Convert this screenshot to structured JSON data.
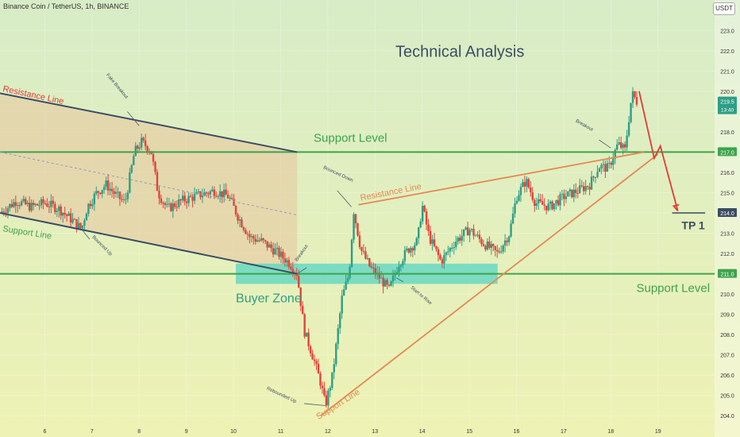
{
  "header": {
    "symbol_line": "Binance Coin / TetherUS, 1h, BINANCE",
    "currency_button": "USDT"
  },
  "colors": {
    "bg_top": "#d7ecc7",
    "bg_bottom": "#eef2b4",
    "up_candle": "#2e9e86",
    "down_candle": "#e0443c",
    "channel_fill": "#e8c49e",
    "buyer_zone": "#57d6c3",
    "support_green": "#3fa34d",
    "channel_line": "#3b4d62",
    "orange_line": "#e48a52",
    "forecast_red": "#e53935",
    "title_color": "#3b4d62"
  },
  "chart_data": {
    "type": "candlestick",
    "title": "Technical Analysis",
    "ylim": [
      203.5,
      224.5
    ],
    "xlim": [
      5.05,
      20.2
    ],
    "y_ticks": [
      204.0,
      205.0,
      206.0,
      207.0,
      208.0,
      209.0,
      210.0,
      211.0,
      212.0,
      213.0,
      214.0,
      215.0,
      216.0,
      217.0,
      218.0,
      219.0,
      220.0,
      221.0,
      222.0,
      223.0
    ],
    "x_ticks": [
      "6",
      "7",
      "8",
      "9",
      "10",
      "11",
      "12",
      "13",
      "14",
      "15",
      "16",
      "17",
      "18",
      "19"
    ],
    "price_labels": [
      {
        "value": 217.0,
        "text": "217.0",
        "color": "#3fa34d"
      },
      {
        "value": 214.0,
        "text": "214.0",
        "color": "#3b4d62"
      },
      {
        "value": 211.0,
        "text": "211.0",
        "color": "#3fa34d"
      },
      {
        "value": 219.5,
        "text": "219.5",
        "color": "#2e9e86",
        "sub": "13:40"
      }
    ],
    "price_path": [
      {
        "x": 5.05,
        "y": 214.0
      },
      {
        "x": 5.4,
        "y": 214.6
      },
      {
        "x": 5.7,
        "y": 214.3
      },
      {
        "x": 6.0,
        "y": 214.5
      },
      {
        "x": 6.3,
        "y": 214.2
      },
      {
        "x": 6.6,
        "y": 213.6
      },
      {
        "x": 6.78,
        "y": 213.2
      },
      {
        "x": 6.9,
        "y": 214.3
      },
      {
        "x": 7.1,
        "y": 215.0
      },
      {
        "x": 7.3,
        "y": 215.4
      },
      {
        "x": 7.5,
        "y": 214.9
      },
      {
        "x": 7.7,
        "y": 214.5
      },
      {
        "x": 7.9,
        "y": 217.0
      },
      {
        "x": 8.05,
        "y": 217.5
      },
      {
        "x": 8.25,
        "y": 217.1
      },
      {
        "x": 8.4,
        "y": 215.0
      },
      {
        "x": 8.6,
        "y": 214.2
      },
      {
        "x": 8.9,
        "y": 214.6
      },
      {
        "x": 9.3,
        "y": 214.9
      },
      {
        "x": 9.6,
        "y": 215.1
      },
      {
        "x": 9.9,
        "y": 214.8
      },
      {
        "x": 10.1,
        "y": 213.8
      },
      {
        "x": 10.35,
        "y": 212.8
      },
      {
        "x": 10.6,
        "y": 212.6
      },
      {
        "x": 10.9,
        "y": 212.1
      },
      {
        "x": 11.2,
        "y": 211.5
      },
      {
        "x": 11.35,
        "y": 211.0
      },
      {
        "x": 11.5,
        "y": 208.2
      },
      {
        "x": 11.7,
        "y": 206.8
      },
      {
        "x": 11.85,
        "y": 205.6
      },
      {
        "x": 11.95,
        "y": 204.5
      },
      {
        "x": 12.1,
        "y": 206.0
      },
      {
        "x": 12.3,
        "y": 209.8
      },
      {
        "x": 12.45,
        "y": 211.0
      },
      {
        "x": 12.55,
        "y": 214.1
      },
      {
        "x": 12.7,
        "y": 212.2
      },
      {
        "x": 12.9,
        "y": 211.3
      },
      {
        "x": 13.1,
        "y": 210.8
      },
      {
        "x": 13.3,
        "y": 210.2
      },
      {
        "x": 13.5,
        "y": 211.5
      },
      {
        "x": 13.7,
        "y": 212.2
      },
      {
        "x": 13.9,
        "y": 212.6
      },
      {
        "x": 14.0,
        "y": 214.4
      },
      {
        "x": 14.15,
        "y": 212.8
      },
      {
        "x": 14.4,
        "y": 211.6
      },
      {
        "x": 14.7,
        "y": 212.6
      },
      {
        "x": 15.0,
        "y": 213.2
      },
      {
        "x": 15.3,
        "y": 212.5
      },
      {
        "x": 15.6,
        "y": 212.0
      },
      {
        "x": 15.85,
        "y": 213.0
      },
      {
        "x": 16.0,
        "y": 214.8
      },
      {
        "x": 16.2,
        "y": 215.6
      },
      {
        "x": 16.4,
        "y": 214.5
      },
      {
        "x": 16.7,
        "y": 214.3
      },
      {
        "x": 17.0,
        "y": 214.8
      },
      {
        "x": 17.3,
        "y": 215.1
      },
      {
        "x": 17.55,
        "y": 215.4
      },
      {
        "x": 17.75,
        "y": 216.3
      },
      {
        "x": 17.95,
        "y": 216.2
      },
      {
        "x": 18.15,
        "y": 217.4
      },
      {
        "x": 18.3,
        "y": 217.1
      },
      {
        "x": 18.45,
        "y": 219.9
      },
      {
        "x": 18.55,
        "y": 219.5
      }
    ],
    "channel": {
      "upper": [
        {
          "x": 5.05,
          "y": 219.9
        },
        {
          "x": 11.35,
          "y": 217.0
        }
      ],
      "mid": [
        {
          "x": 5.05,
          "y": 217.0
        },
        {
          "x": 11.35,
          "y": 213.9
        }
      ],
      "lower": [
        {
          "x": 5.05,
          "y": 214.0
        },
        {
          "x": 11.35,
          "y": 211.0
        }
      ]
    },
    "buyer_zone": {
      "x0": 10.05,
      "x1": 15.6,
      "y0": 210.5,
      "y1": 211.5
    },
    "support_level_upper": 217.0,
    "support_level_lower": 211.0,
    "tp_level": 214.0,
    "rising_support": [
      {
        "x": 11.85,
        "y": 204.0
      },
      {
        "x": 19.0,
        "y": 216.9
      }
    ],
    "rising_resistance": [
      {
        "x": 12.65,
        "y": 214.4
      },
      {
        "x": 18.7,
        "y": 217.0
      }
    ],
    "forecast": [
      {
        "x": 18.6,
        "y": 220.0
      },
      {
        "x": 18.92,
        "y": 216.7
      },
      {
        "x": 19.05,
        "y": 217.3
      },
      {
        "x": 19.42,
        "y": 214.1
      }
    ],
    "tp_line_x": [
      19.3,
      20.0
    ],
    "annotations": [
      {
        "text": "Technical Analysis",
        "x": 14.8,
        "y": 221.7,
        "color": "#3b4d62",
        "size": 20,
        "weight": "normal",
        "rotate": 0,
        "anchor": "middle"
      },
      {
        "text": "Resistance Line",
        "x": 5.1,
        "y": 220.0,
        "color": "#e53935",
        "size": 11,
        "rotate": 12,
        "anchor": "start"
      },
      {
        "text": "Support Line",
        "x": 5.1,
        "y": 213.1,
        "color": "#3fa34d",
        "size": 11,
        "rotate": 9,
        "anchor": "start"
      },
      {
        "text": "Support Level",
        "x": 11.7,
        "y": 217.5,
        "color": "#3fa34d",
        "size": 15,
        "rotate": 0,
        "anchor": "start"
      },
      {
        "text": "Support Level",
        "x": 20.1,
        "y": 210.1,
        "color": "#3fa34d",
        "size": 15,
        "rotate": 0,
        "anchor": "end"
      },
      {
        "text": "Buyer Zone",
        "x": 10.05,
        "y": 209.6,
        "color": "#2e9e86",
        "size": 16,
        "rotate": 0,
        "anchor": "start"
      },
      {
        "text": "Resistance Line",
        "x": 12.7,
        "y": 214.6,
        "color": "#e48a52",
        "size": 11,
        "rotate": -11,
        "anchor": "start"
      },
      {
        "text": "Support Line",
        "x": 11.8,
        "y": 203.8,
        "color": "#e48a52",
        "size": 11,
        "rotate": -32,
        "anchor": "start"
      },
      {
        "text": "TP 1",
        "x": 19.5,
        "y": 213.2,
        "color": "#3b4d62",
        "size": 14,
        "weight": "bold",
        "rotate": 0,
        "anchor": "start"
      },
      {
        "text": "Fake Breakout",
        "x": 7.3,
        "y": 220.8,
        "color": "#3b4d62",
        "size": 6,
        "rotate": 50,
        "anchor": "start"
      },
      {
        "text": "Bounced Up",
        "x": 7.0,
        "y": 212.8,
        "color": "#3b4d62",
        "size": 6,
        "rotate": 45,
        "anchor": "start"
      },
      {
        "text": "Breakout",
        "x": 11.35,
        "y": 211.6,
        "color": "#3b4d62",
        "size": 6,
        "rotate": -55,
        "anchor": "start"
      },
      {
        "text": "Bounced Down",
        "x": 11.9,
        "y": 216.2,
        "color": "#3b4d62",
        "size": 6,
        "rotate": 25,
        "anchor": "start"
      },
      {
        "text": "Start to Rise",
        "x": 13.75,
        "y": 210.3,
        "color": "#3b4d62",
        "size": 6,
        "rotate": 40,
        "anchor": "start"
      },
      {
        "text": "Rebounded Up",
        "x": 10.7,
        "y": 205.3,
        "color": "#3b4d62",
        "size": 6,
        "rotate": 25,
        "anchor": "start"
      },
      {
        "text": "Breakout",
        "x": 17.25,
        "y": 218.5,
        "color": "#3b4d62",
        "size": 6,
        "rotate": 30,
        "anchor": "start"
      }
    ],
    "pointers": [
      {
        "from": {
          "x": 7.75,
          "y": 219.0
        },
        "to": {
          "x": 8.0,
          "y": 218.3
        }
      },
      {
        "from": {
          "x": 6.95,
          "y": 212.7
        },
        "to": {
          "x": 6.78,
          "y": 213.2
        }
      },
      {
        "from": {
          "x": 11.55,
          "y": 211.3
        },
        "to": {
          "x": 11.35,
          "y": 211.0
        }
      },
      {
        "from": {
          "x": 12.2,
          "y": 215.1
        },
        "to": {
          "x": 12.5,
          "y": 214.3
        }
      },
      {
        "from": {
          "x": 13.6,
          "y": 210.6
        },
        "to": {
          "x": 13.45,
          "y": 210.8
        }
      },
      {
        "from": {
          "x": 11.5,
          "y": 204.6
        },
        "to": {
          "x": 11.95,
          "y": 204.5
        }
      },
      {
        "from": {
          "x": 17.75,
          "y": 217.6
        },
        "to": {
          "x": 18.0,
          "y": 217.2
        }
      }
    ]
  }
}
